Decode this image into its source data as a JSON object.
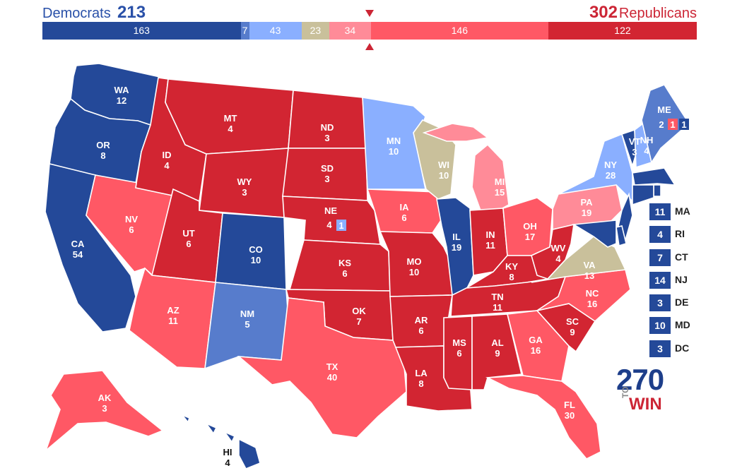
{
  "header": {
    "dem_label": "Democrats",
    "dem_total": "213",
    "rep_total": "302",
    "rep_label": "Republicans"
  },
  "colors": {
    "safe_dem": "#244999",
    "likely_dem": "#577ccc",
    "lean_dem": "#8aafff",
    "tossup": "#c9c09b",
    "lean_rep": "#ff8b98",
    "likely_rep": "#ff5865",
    "safe_rep": "#d22532"
  },
  "bar": [
    {
      "key": "safe_dem",
      "value": 163,
      "label": "163"
    },
    {
      "key": "likely_dem",
      "value": 7,
      "label": "7"
    },
    {
      "key": "lean_dem",
      "value": 43,
      "label": "43"
    },
    {
      "key": "tossup",
      "value": 23,
      "label": "23"
    },
    {
      "key": "lean_rep",
      "value": 34,
      "label": "34"
    },
    {
      "key": "likely_rep",
      "value": 146,
      "label": "146"
    },
    {
      "key": "safe_rep",
      "value": 122,
      "label": "122"
    }
  ],
  "states": [
    {
      "abbr": "WA",
      "ev": "12",
      "rating": "safe_dem"
    },
    {
      "abbr": "OR",
      "ev": "8",
      "rating": "safe_dem"
    },
    {
      "abbr": "CA",
      "ev": "54",
      "rating": "safe_dem"
    },
    {
      "abbr": "NV",
      "ev": "6",
      "rating": "likely_rep"
    },
    {
      "abbr": "ID",
      "ev": "4",
      "rating": "safe_rep"
    },
    {
      "abbr": "MT",
      "ev": "4",
      "rating": "safe_rep"
    },
    {
      "abbr": "WY",
      "ev": "3",
      "rating": "safe_rep"
    },
    {
      "abbr": "UT",
      "ev": "6",
      "rating": "safe_rep"
    },
    {
      "abbr": "AZ",
      "ev": "11",
      "rating": "likely_rep"
    },
    {
      "abbr": "CO",
      "ev": "10",
      "rating": "safe_dem"
    },
    {
      "abbr": "NM",
      "ev": "5",
      "rating": "likely_dem"
    },
    {
      "abbr": "ND",
      "ev": "3",
      "rating": "safe_rep"
    },
    {
      "abbr": "SD",
      "ev": "3",
      "rating": "safe_rep"
    },
    {
      "abbr": "NE",
      "ev": "4",
      "rating": "safe_rep"
    },
    {
      "abbr": "KS",
      "ev": "6",
      "rating": "safe_rep"
    },
    {
      "abbr": "OK",
      "ev": "7",
      "rating": "safe_rep"
    },
    {
      "abbr": "TX",
      "ev": "40",
      "rating": "likely_rep"
    },
    {
      "abbr": "MN",
      "ev": "10",
      "rating": "lean_dem"
    },
    {
      "abbr": "IA",
      "ev": "6",
      "rating": "likely_rep"
    },
    {
      "abbr": "MO",
      "ev": "10",
      "rating": "safe_rep"
    },
    {
      "abbr": "AR",
      "ev": "6",
      "rating": "safe_rep"
    },
    {
      "abbr": "LA",
      "ev": "8",
      "rating": "safe_rep"
    },
    {
      "abbr": "WI",
      "ev": "10",
      "rating": "tossup"
    },
    {
      "abbr": "IL",
      "ev": "19",
      "rating": "safe_dem"
    },
    {
      "abbr": "MI",
      "ev": "15",
      "rating": "lean_rep"
    },
    {
      "abbr": "IN",
      "ev": "11",
      "rating": "safe_rep"
    },
    {
      "abbr": "OH",
      "ev": "17",
      "rating": "likely_rep"
    },
    {
      "abbr": "KY",
      "ev": "8",
      "rating": "safe_rep"
    },
    {
      "abbr": "TN",
      "ev": "11",
      "rating": "safe_rep"
    },
    {
      "abbr": "MS",
      "ev": "6",
      "rating": "safe_rep"
    },
    {
      "abbr": "AL",
      "ev": "9",
      "rating": "safe_rep"
    },
    {
      "abbr": "GA",
      "ev": "16",
      "rating": "likely_rep"
    },
    {
      "abbr": "FL",
      "ev": "30",
      "rating": "likely_rep"
    },
    {
      "abbr": "SC",
      "ev": "9",
      "rating": "safe_rep"
    },
    {
      "abbr": "NC",
      "ev": "16",
      "rating": "likely_rep"
    },
    {
      "abbr": "VA",
      "ev": "13",
      "rating": "tossup"
    },
    {
      "abbr": "WV",
      "ev": "4",
      "rating": "safe_rep"
    },
    {
      "abbr": "PA",
      "ev": "19",
      "rating": "lean_rep"
    },
    {
      "abbr": "NY",
      "ev": "28",
      "rating": "lean_dem"
    },
    {
      "abbr": "VT",
      "ev": "3",
      "rating": "safe_dem"
    },
    {
      "abbr": "NH",
      "ev": "4",
      "rating": "lean_dem"
    },
    {
      "abbr": "ME",
      "ev": "",
      "rating": "likely_dem"
    },
    {
      "abbr": "AK",
      "ev": "3",
      "rating": "likely_rep"
    },
    {
      "abbr": "HI",
      "ev": "4",
      "rating": "safe_dem"
    }
  ],
  "maine_districts": [
    "2",
    "1",
    "1"
  ],
  "nebraska_district": "1",
  "small_states": [
    {
      "abbr": "MA",
      "ev": "11"
    },
    {
      "abbr": "RI",
      "ev": "4"
    },
    {
      "abbr": "CT",
      "ev": "7"
    },
    {
      "abbr": "NJ",
      "ev": "14"
    },
    {
      "abbr": "DE",
      "ev": "3"
    },
    {
      "abbr": "MD",
      "ev": "10"
    },
    {
      "abbr": "DC",
      "ev": "3"
    }
  ],
  "logo": {
    "number": "270",
    "to": "TO",
    "win": "WIN"
  }
}
